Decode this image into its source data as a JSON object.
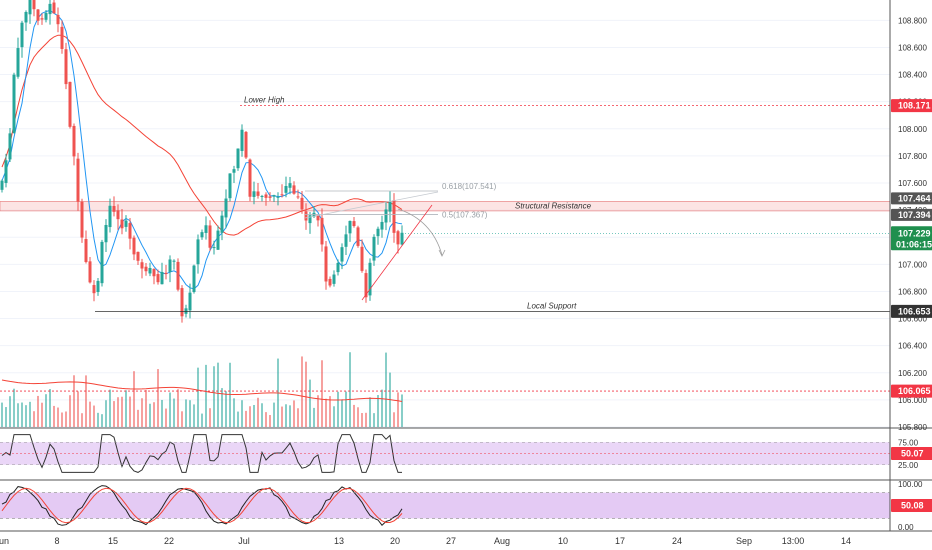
{
  "colors": {
    "up": "#26a69a",
    "down": "#ef5350",
    "ma_fast": "#2196f3",
    "ma_slow": "#f44336",
    "resistance_zone": "#f8c4c4",
    "indicator_band": "#d8b4f0",
    "price_tag": "#f23645",
    "price_tag_dark": "#333333",
    "price_tag_green": "#1f8f4e",
    "grid": "#f0f3fa"
  },
  "annotations": {
    "lower_high": "Lower High",
    "structural_resistance": "Structural Resistance",
    "local_support": "Local Support",
    "fib_618": "0.618(107.541)",
    "fib_5": "0.5(107.367)"
  },
  "price_axis": {
    "ticks": [
      "108.800",
      "108.600",
      "108.400",
      "108.200",
      "108.000",
      "107.800",
      "107.600",
      "107.400",
      "107.200",
      "107.000",
      "106.800",
      "106.600",
      "106.400",
      "106.200",
      "106.000",
      "105.800"
    ]
  },
  "tags": {
    "lower_high": "108.171",
    "resistance_top": "107.464",
    "resistance_bottom": "107.394",
    "last_price": "107.229",
    "countdown": "01:06:15",
    "local_support": "106.653",
    "volume_level": "106.065",
    "rsi_value": "50.07",
    "stoch_value": "50.08"
  },
  "rsi_axis": {
    "ticks": [
      "75.00",
      "25.00"
    ]
  },
  "stoch_axis": {
    "ticks": [
      "100.00",
      "50.00",
      "0.00"
    ]
  },
  "time_axis": {
    "ticks": [
      "un",
      "8",
      "15",
      "22",
      "Jul",
      "13",
      "20",
      "27",
      "Aug",
      "10",
      "17",
      "24",
      "Sep",
      "13:00",
      "14"
    ]
  },
  "chart_data": {
    "type": "candlestick",
    "price_range": [
      105.8,
      108.95
    ],
    "levels": {
      "lower_high": 108.171,
      "resistance_top": 107.464,
      "resistance_bottom": 107.394,
      "last_price": 107.229,
      "local_support": 106.653,
      "fib_618": 107.541,
      "fib_5": 107.367
    },
    "rsi": {
      "value": 50.07,
      "range": [
        0,
        100
      ],
      "band": [
        25,
        75
      ]
    },
    "stochastic": {
      "value": 50.08,
      "range": [
        0,
        100
      ],
      "band": [
        20,
        80
      ]
    }
  }
}
